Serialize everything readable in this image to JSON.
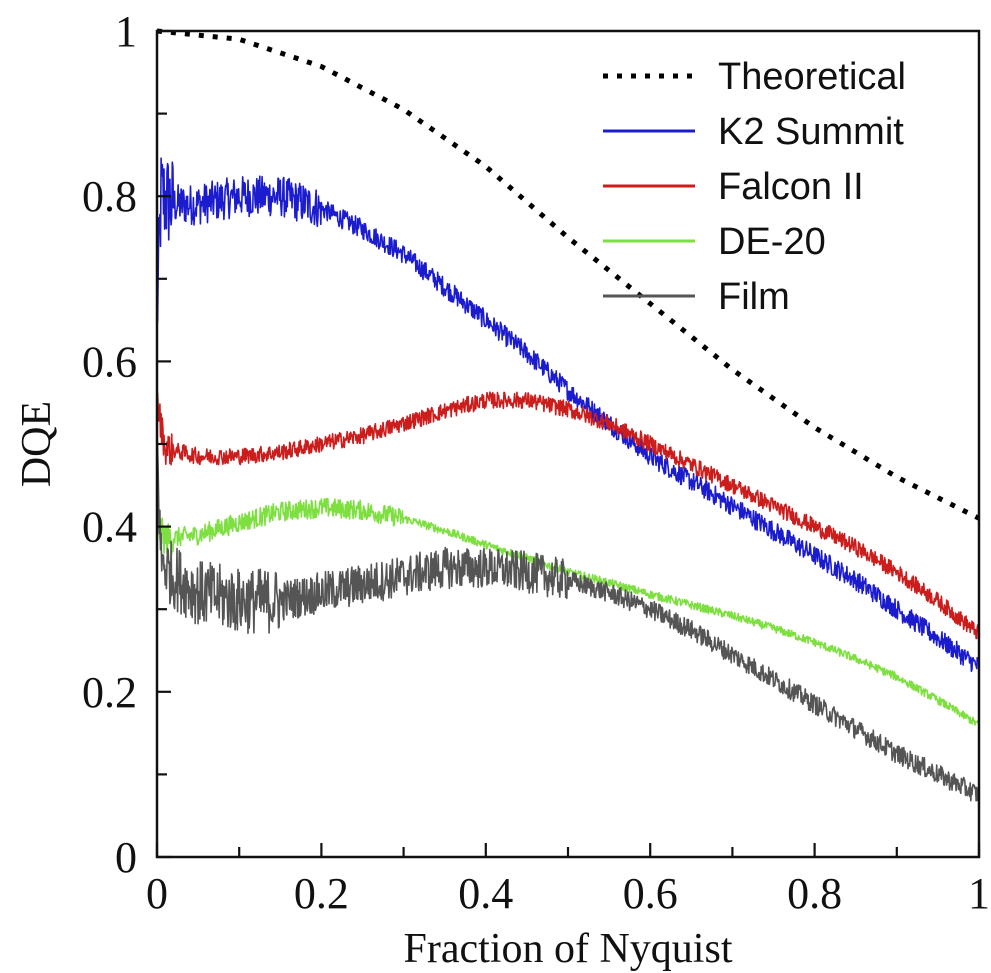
{
  "chart_data": {
    "type": "line",
    "xlabel": "Fraction of Nyquist",
    "ylabel": "DQE",
    "xlim": [
      0,
      1
    ],
    "ylim": [
      0,
      1
    ],
    "xticks": [
      "0",
      "0.2",
      "0.4",
      "0.6",
      "0.8",
      "1"
    ],
    "yticks": [
      "0",
      "0.2",
      "0.4",
      "0.6",
      "0.8",
      "1"
    ],
    "grid": false,
    "legend_position": "top-right",
    "series": [
      {
        "name": "Theoretical",
        "color": "#000000",
        "style": "dotted",
        "x": [
          0,
          0.1,
          0.2,
          0.3,
          0.4,
          0.5,
          0.6,
          0.7,
          0.8,
          0.9,
          1.0
        ],
        "y": [
          1.0,
          0.99,
          0.957,
          0.905,
          0.836,
          0.75,
          0.67,
          0.59,
          0.52,
          0.46,
          0.41
        ]
      },
      {
        "name": "K2 Summit",
        "color": "#1c1ccf",
        "style": "noisy",
        "x": [
          0,
          0.005,
          0.02,
          0.05,
          0.1,
          0.15,
          0.2,
          0.25,
          0.3,
          0.35,
          0.4,
          0.45,
          0.5,
          0.55,
          0.6,
          0.65,
          0.7,
          0.75,
          0.8,
          0.85,
          0.9,
          0.95,
          1.0
        ],
        "y": [
          0.65,
          0.8,
          0.79,
          0.79,
          0.8,
          0.8,
          0.785,
          0.76,
          0.73,
          0.69,
          0.65,
          0.61,
          0.565,
          0.525,
          0.485,
          0.455,
          0.425,
          0.395,
          0.365,
          0.335,
          0.3,
          0.265,
          0.23
        ]
      },
      {
        "name": "Falcon II",
        "color": "#cc1d1d",
        "style": "noisy",
        "x": [
          0,
          0.01,
          0.05,
          0.1,
          0.15,
          0.2,
          0.25,
          0.3,
          0.35,
          0.4,
          0.45,
          0.5,
          0.55,
          0.6,
          0.65,
          0.7,
          0.75,
          0.8,
          0.85,
          0.9,
          0.95,
          1.0
        ],
        "y": [
          0.55,
          0.495,
          0.485,
          0.485,
          0.49,
          0.5,
          0.51,
          0.525,
          0.54,
          0.553,
          0.553,
          0.542,
          0.525,
          0.5,
          0.475,
          0.45,
          0.425,
          0.4,
          0.375,
          0.345,
          0.31,
          0.27
        ]
      },
      {
        "name": "DE-20",
        "color": "#7ee040",
        "style": "noisy",
        "x": [
          0,
          0.01,
          0.05,
          0.1,
          0.15,
          0.2,
          0.25,
          0.3,
          0.35,
          0.4,
          0.45,
          0.5,
          0.55,
          0.6,
          0.65,
          0.7,
          0.75,
          0.8,
          0.85,
          0.9,
          0.95,
          1.0
        ],
        "y": [
          0.4,
          0.385,
          0.39,
          0.405,
          0.418,
          0.423,
          0.42,
          0.41,
          0.395,
          0.378,
          0.362,
          0.345,
          0.332,
          0.318,
          0.305,
          0.292,
          0.277,
          0.26,
          0.24,
          0.218,
          0.19,
          0.16
        ]
      },
      {
        "name": "Film",
        "color": "#555555",
        "style": "noisy",
        "x": [
          0,
          0.005,
          0.02,
          0.05,
          0.1,
          0.15,
          0.2,
          0.25,
          0.3,
          0.35,
          0.4,
          0.45,
          0.5,
          0.55,
          0.6,
          0.65,
          0.7,
          0.75,
          0.8,
          0.85,
          0.9,
          0.95,
          1.0
        ],
        "y": [
          0.5,
          0.36,
          0.34,
          0.32,
          0.31,
          0.31,
          0.32,
          0.33,
          0.34,
          0.35,
          0.35,
          0.345,
          0.335,
          0.32,
          0.3,
          0.275,
          0.245,
          0.215,
          0.185,
          0.155,
          0.125,
          0.1,
          0.075
        ]
      }
    ]
  }
}
